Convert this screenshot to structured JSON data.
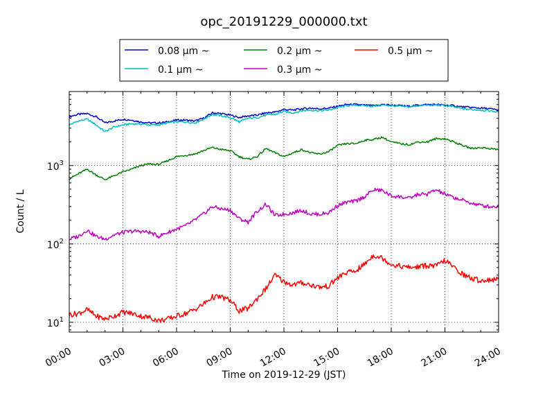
{
  "chart_data": {
    "type": "line",
    "title": "opc_20191229_000000.txt",
    "xlabel": "Time on 2019-12-29 (JST)",
    "ylabel": "Count / L",
    "yscale": "log",
    "ylim": [
      7.5,
      8800
    ],
    "xlim": [
      0,
      24
    ],
    "grid": true,
    "grid_style": "dotted",
    "legend_position": "top-center",
    "x_ticks": [
      "00:00",
      "03:00",
      "06:00",
      "09:00",
      "12:00",
      "15:00",
      "18:00",
      "21:00",
      "24:00"
    ],
    "y_ticks": [
      {
        "value": 10,
        "base": "10",
        "exp": "1"
      },
      {
        "value": 100,
        "base": "10",
        "exp": "2"
      },
      {
        "value": 1000,
        "base": "10",
        "exp": "3"
      }
    ],
    "x_hours": [
      0,
      0.5,
      1,
      1.5,
      2,
      2.5,
      3,
      3.5,
      4,
      4.5,
      5,
      5.5,
      6,
      6.5,
      7,
      7.5,
      8,
      8.5,
      9,
      9.5,
      10,
      10.5,
      11,
      11.5,
      12,
      12.5,
      13,
      13.5,
      14,
      14.5,
      15,
      15.5,
      16,
      16.5,
      17,
      17.5,
      18,
      18.5,
      19,
      19.5,
      20,
      20.5,
      21,
      21.5,
      22,
      22.5,
      23,
      23.5,
      24
    ],
    "series": [
      {
        "name": "0.08 µm ~",
        "color": "#0000cc",
        "values": [
          4200,
          4500,
          4600,
          4200,
          3500,
          3700,
          3900,
          3800,
          3600,
          3500,
          3500,
          3600,
          3800,
          3800,
          3700,
          4000,
          4700,
          4600,
          4400,
          4100,
          4300,
          4400,
          4700,
          4800,
          5200,
          5100,
          5300,
          5400,
          5300,
          5400,
          5700,
          6000,
          6000,
          5900,
          5800,
          6000,
          5900,
          5800,
          5700,
          5900,
          6000,
          6000,
          5900,
          5800,
          5600,
          5500,
          5400,
          5300,
          5100
        ]
      },
      {
        "name": "0.1 µm ~",
        "color": "#00bfbf",
        "values": [
          3300,
          3700,
          3900,
          3300,
          2700,
          3100,
          3300,
          3400,
          3400,
          3300,
          3300,
          3500,
          3600,
          3600,
          3500,
          3900,
          4500,
          4300,
          4100,
          3600,
          4000,
          4100,
          4400,
          4500,
          4900,
          4700,
          5000,
          5100,
          5000,
          5100,
          5500,
          5800,
          5900,
          5800,
          5700,
          5900,
          5800,
          5700,
          5600,
          5800,
          5900,
          5900,
          5800,
          5600,
          5300,
          5200,
          5100,
          5000,
          4800
        ]
      },
      {
        "name": "0.2 µm ~",
        "color": "#008000",
        "values": [
          680,
          780,
          900,
          760,
          660,
          740,
          830,
          900,
          1000,
          1050,
          1030,
          1150,
          1300,
          1350,
          1400,
          1550,
          1700,
          1600,
          1550,
          1300,
          1200,
          1300,
          1650,
          1450,
          1300,
          1450,
          1600,
          1450,
          1400,
          1500,
          1800,
          1900,
          1900,
          2100,
          2150,
          2300,
          2000,
          1900,
          1850,
          2000,
          2000,
          2200,
          2200,
          2000,
          1800,
          1650,
          1700,
          1650,
          1600
        ]
      },
      {
        "name": "0.3 µm ~",
        "color": "#bf00bf",
        "values": [
          115,
          125,
          150,
          125,
          115,
          130,
          140,
          145,
          145,
          140,
          125,
          140,
          155,
          170,
          200,
          240,
          300,
          280,
          270,
          210,
          190,
          260,
          320,
          230,
          240,
          250,
          270,
          240,
          240,
          250,
          310,
          340,
          350,
          400,
          490,
          480,
          410,
          400,
          380,
          430,
          430,
          490,
          430,
          390,
          360,
          330,
          310,
          300,
          300
        ]
      },
      {
        "name": "0.5 µm ~",
        "color": "#ff0000",
        "values": [
          12.5,
          13,
          14.5,
          12,
          11,
          12,
          13.5,
          13,
          12,
          11.5,
          10.5,
          11,
          12,
          13,
          14.5,
          17,
          21,
          21,
          19,
          14,
          15,
          20,
          27,
          40,
          33,
          30,
          32,
          30,
          28,
          29,
          37,
          43,
          45,
          55,
          72,
          66,
          55,
          52,
          50,
          51,
          53,
          52,
          62,
          50,
          41,
          36,
          34,
          35,
          35
        ]
      }
    ]
  }
}
